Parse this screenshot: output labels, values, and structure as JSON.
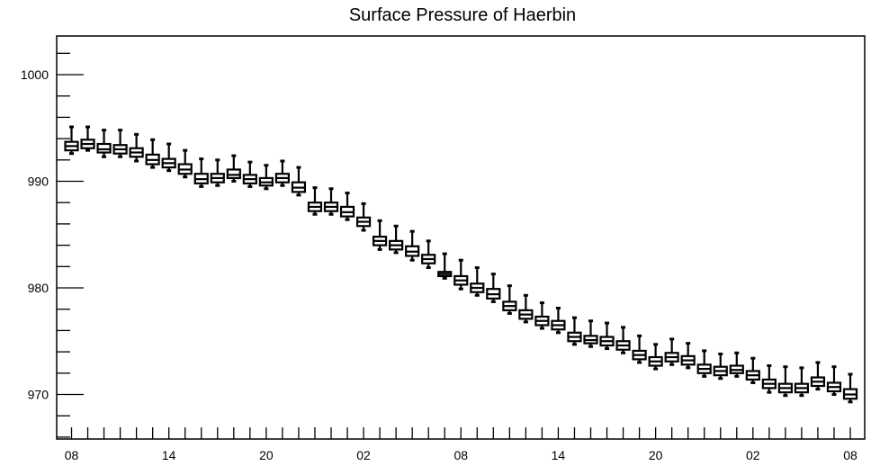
{
  "chart_data": {
    "type": "box",
    "title": "Surface Pressure of Haerbin",
    "xlabel": "",
    "ylabel": "",
    "ylim": [
      965.8,
      1003.5
    ],
    "yticks": [
      970,
      980,
      990,
      1000
    ],
    "ytick_labels": [
      "970",
      "980",
      "990",
      "1000"
    ],
    "xticks": [
      0,
      6,
      12,
      18,
      24,
      30,
      36,
      42,
      48
    ],
    "xtick_labels": [
      "08",
      "14",
      "20",
      "02",
      "08",
      "14",
      "20",
      "02",
      "08"
    ],
    "xlim": [
      -0.5,
      48.5
    ],
    "grid": false,
    "boxes": [
      {
        "x": 0,
        "q1": 992.9,
        "median": 993.3,
        "q3": 993.7,
        "min": 992.6,
        "max": 995.1
      },
      {
        "x": 1,
        "q1": 993.1,
        "median": 993.5,
        "q3": 993.9,
        "min": 992.9,
        "max": 995.1
      },
      {
        "x": 2,
        "q1": 992.7,
        "median": 993.0,
        "q3": 993.5,
        "min": 992.3,
        "max": 994.8
      },
      {
        "x": 3,
        "q1": 992.6,
        "median": 993.0,
        "q3": 993.4,
        "min": 992.3,
        "max": 994.8
      },
      {
        "x": 4,
        "q1": 992.3,
        "median": 992.7,
        "q3": 993.1,
        "min": 991.9,
        "max": 994.4
      },
      {
        "x": 5,
        "q1": 991.6,
        "median": 992.0,
        "q3": 992.5,
        "min": 991.3,
        "max": 993.9
      },
      {
        "x": 6,
        "q1": 991.3,
        "median": 991.7,
        "q3": 992.1,
        "min": 991.0,
        "max": 993.5
      },
      {
        "x": 7,
        "q1": 990.7,
        "median": 991.1,
        "q3": 991.6,
        "min": 990.4,
        "max": 992.9
      },
      {
        "x": 8,
        "q1": 989.8,
        "median": 990.2,
        "q3": 990.7,
        "min": 989.5,
        "max": 992.1
      },
      {
        "x": 9,
        "q1": 989.9,
        "median": 990.3,
        "q3": 990.7,
        "min": 989.6,
        "max": 992.0
      },
      {
        "x": 10,
        "q1": 990.3,
        "median": 990.6,
        "q3": 991.1,
        "min": 990.0,
        "max": 992.4
      },
      {
        "x": 11,
        "q1": 989.8,
        "median": 990.2,
        "q3": 990.6,
        "min": 989.5,
        "max": 991.8
      },
      {
        "x": 12,
        "q1": 989.6,
        "median": 989.9,
        "q3": 990.3,
        "min": 989.3,
        "max": 991.5
      },
      {
        "x": 13,
        "q1": 989.9,
        "median": 990.3,
        "q3": 990.7,
        "min": 989.6,
        "max": 991.9
      },
      {
        "x": 14,
        "q1": 989.0,
        "median": 989.4,
        "q3": 989.9,
        "min": 988.7,
        "max": 991.3
      },
      {
        "x": 15,
        "q1": 987.2,
        "median": 987.6,
        "q3": 988.0,
        "min": 986.9,
        "max": 989.4
      },
      {
        "x": 16,
        "q1": 987.2,
        "median": 987.6,
        "q3": 988.0,
        "min": 986.9,
        "max": 989.3
      },
      {
        "x": 17,
        "q1": 986.7,
        "median": 987.1,
        "q3": 987.6,
        "min": 986.4,
        "max": 988.9
      },
      {
        "x": 18,
        "q1": 985.8,
        "median": 986.2,
        "q3": 986.6,
        "min": 985.4,
        "max": 987.9
      },
      {
        "x": 19,
        "q1": 984.0,
        "median": 984.4,
        "q3": 984.8,
        "min": 983.6,
        "max": 986.3
      },
      {
        "x": 20,
        "q1": 983.6,
        "median": 984.0,
        "q3": 984.4,
        "min": 983.3,
        "max": 985.8
      },
      {
        "x": 21,
        "q1": 983.0,
        "median": 983.4,
        "q3": 983.9,
        "min": 982.6,
        "max": 985.3
      },
      {
        "x": 22,
        "q1": 982.3,
        "median": 982.7,
        "q3": 983.1,
        "min": 981.9,
        "max": 984.4
      },
      {
        "x": 23,
        "q1": 981.1,
        "median": 981.3,
        "q3": 981.5,
        "min": 980.9,
        "max": 983.2
      },
      {
        "x": 24,
        "q1": 980.3,
        "median": 980.7,
        "q3": 981.1,
        "min": 979.9,
        "max": 982.6
      },
      {
        "x": 25,
        "q1": 979.6,
        "median": 980.0,
        "q3": 980.4,
        "min": 979.3,
        "max": 981.9
      },
      {
        "x": 26,
        "q1": 979.0,
        "median": 979.4,
        "q3": 979.9,
        "min": 978.7,
        "max": 981.3
      },
      {
        "x": 27,
        "q1": 977.9,
        "median": 978.3,
        "q3": 978.7,
        "min": 977.6,
        "max": 980.2
      },
      {
        "x": 28,
        "q1": 977.1,
        "median": 977.5,
        "q3": 977.9,
        "min": 976.8,
        "max": 979.3
      },
      {
        "x": 29,
        "q1": 976.5,
        "median": 976.9,
        "q3": 977.3,
        "min": 976.2,
        "max": 978.6
      },
      {
        "x": 30,
        "q1": 976.1,
        "median": 976.5,
        "q3": 976.9,
        "min": 975.8,
        "max": 978.1
      },
      {
        "x": 31,
        "q1": 975.0,
        "median": 975.4,
        "q3": 975.8,
        "min": 974.7,
        "max": 977.2
      },
      {
        "x": 32,
        "q1": 974.8,
        "median": 975.1,
        "q3": 975.5,
        "min": 974.5,
        "max": 976.9
      },
      {
        "x": 33,
        "q1": 974.6,
        "median": 975.0,
        "q3": 975.4,
        "min": 974.3,
        "max": 976.7
      },
      {
        "x": 34,
        "q1": 974.2,
        "median": 974.6,
        "q3": 975.0,
        "min": 973.9,
        "max": 976.3
      },
      {
        "x": 35,
        "q1": 973.3,
        "median": 973.7,
        "q3": 974.1,
        "min": 973.0,
        "max": 975.5
      },
      {
        "x": 36,
        "q1": 972.7,
        "median": 973.1,
        "q3": 973.5,
        "min": 972.4,
        "max": 974.7
      },
      {
        "x": 37,
        "q1": 973.1,
        "median": 973.5,
        "q3": 973.9,
        "min": 972.8,
        "max": 975.2
      },
      {
        "x": 38,
        "q1": 972.8,
        "median": 973.2,
        "q3": 973.6,
        "min": 972.5,
        "max": 974.8
      },
      {
        "x": 39,
        "q1": 972.0,
        "median": 972.4,
        "q3": 972.8,
        "min": 971.7,
        "max": 974.1
      },
      {
        "x": 40,
        "q1": 971.8,
        "median": 972.2,
        "q3": 972.6,
        "min": 971.5,
        "max": 973.8
      },
      {
        "x": 41,
        "q1": 972.0,
        "median": 972.3,
        "q3": 972.7,
        "min": 971.7,
        "max": 973.9
      },
      {
        "x": 42,
        "q1": 971.4,
        "median": 971.8,
        "q3": 972.2,
        "min": 971.1,
        "max": 973.4
      },
      {
        "x": 43,
        "q1": 970.6,
        "median": 971.0,
        "q3": 971.4,
        "min": 970.2,
        "max": 972.7
      },
      {
        "x": 44,
        "q1": 970.2,
        "median": 970.6,
        "q3": 971.0,
        "min": 969.9,
        "max": 972.6
      },
      {
        "x": 45,
        "q1": 970.2,
        "median": 970.6,
        "q3": 971.0,
        "min": 969.9,
        "max": 972.5
      },
      {
        "x": 46,
        "q1": 970.8,
        "median": 971.2,
        "q3": 971.6,
        "min": 970.5,
        "max": 973.0
      },
      {
        "x": 47,
        "q1": 970.3,
        "median": 970.7,
        "q3": 971.1,
        "min": 970.0,
        "max": 972.6
      },
      {
        "x": 48,
        "q1": 969.6,
        "median": 970.0,
        "q3": 970.5,
        "min": 969.3,
        "max": 971.9
      }
    ]
  }
}
